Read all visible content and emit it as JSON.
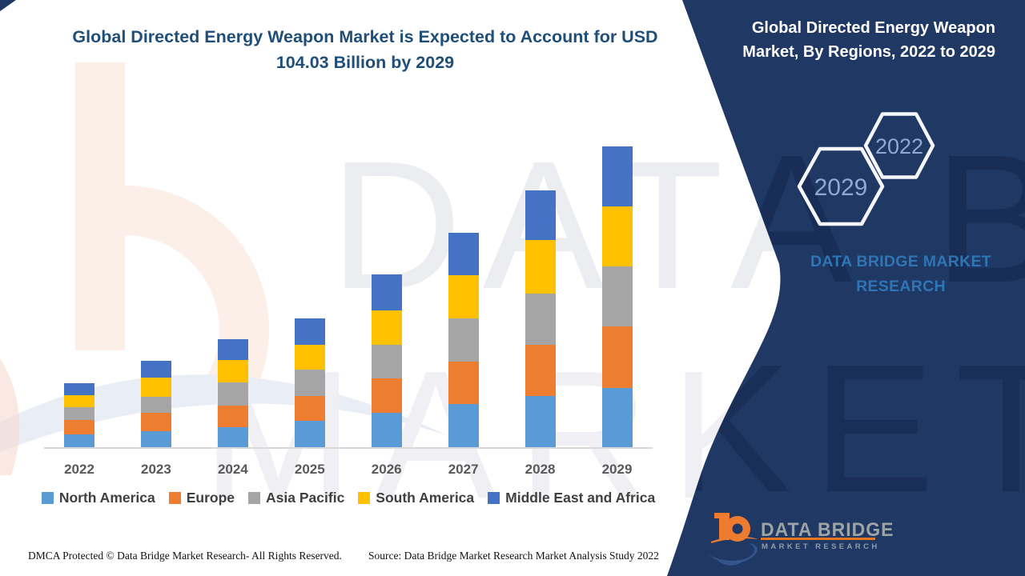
{
  "page": {
    "title_line1": "Global Directed Energy Weapon Market is Expected to Account for USD",
    "title_line2": "104.03 Billion by 2029"
  },
  "panel": {
    "heading": "Global Directed Energy Weapon Market, By Regions, 2022 to 2029",
    "hexagons": [
      "2029",
      "2022"
    ],
    "brand_text": "DATA BRIDGE MARKET RESEARCH",
    "logo": {
      "name": "DATA BRIDGE",
      "tagline": "MARKET RESEARCH"
    }
  },
  "watermark": {
    "line1": "DATA BRIDGE",
    "line2": "MARKET RESEARCH"
  },
  "footer": {
    "left": "DMCA Protected © Data Bridge Market Research- All Rights Reserved.",
    "source": "Source: Data Bridge Market Research Market Analysis Study 2022"
  },
  "colors": {
    "title_blue": "#1F4E79",
    "panel_navy": "#1F3864",
    "brand_blue": "#2E75B6",
    "logo_orange": "#ED7C31"
  },
  "chart_data": {
    "type": "bar",
    "stacked": true,
    "title": "Global Directed Energy Weapon Market is Expected to Account for USD 104.03 Billion by 2029",
    "unit": "USD Billion",
    "categories": [
      "2022",
      "2023",
      "2024",
      "2025",
      "2026",
      "2027",
      "2028",
      "2029"
    ],
    "series": [
      {
        "name": "North America",
        "color": "#5B9BD5",
        "values": [
          4.4,
          5.6,
          6.9,
          9.1,
          11.9,
          15.0,
          17.8,
          20.6
        ]
      },
      {
        "name": "Europe",
        "color": "#ED7D31",
        "values": [
          5.1,
          6.4,
          7.6,
          8.6,
          11.8,
          14.7,
          17.7,
          21.2
        ]
      },
      {
        "name": "Asia Pacific",
        "color": "#A5A5A5",
        "values": [
          4.3,
          5.5,
          7.9,
          9.0,
          11.8,
          14.9,
          17.7,
          20.7
        ]
      },
      {
        "name": "South America",
        "color": "#FFC000",
        "values": [
          4.2,
          6.5,
          7.8,
          8.7,
          11.8,
          15.0,
          18.4,
          20.8
        ]
      },
      {
        "name": "Middle East and Africa",
        "color": "#4472C4",
        "values": [
          4.2,
          5.9,
          7.2,
          9.1,
          12.4,
          14.5,
          17.3,
          20.7
        ]
      }
    ],
    "totals_estimated": [
      22.2,
      29.9,
      37.4,
      44.5,
      59.7,
      74.1,
      88.9,
      104.03
    ],
    "xlabel": "",
    "ylabel": "",
    "ylim": [
      0,
      110
    ],
    "grid": false,
    "value_axis_visible": false,
    "legend_position": "bottom"
  }
}
